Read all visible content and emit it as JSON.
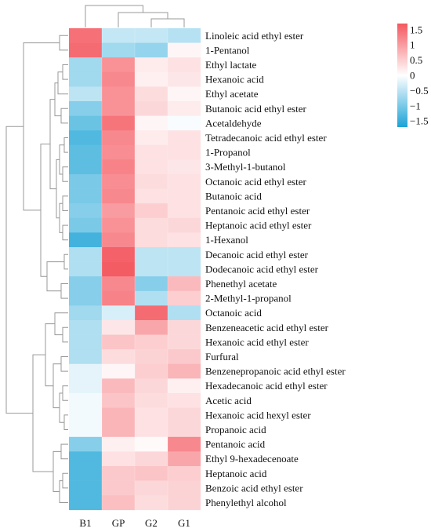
{
  "chart_data": {
    "type": "heatmap",
    "columns": [
      "B1",
      "GP",
      "G2",
      "G1"
    ],
    "rows": [
      "Linoleic acid ethyl ester",
      "1-Pentanol",
      "Ethyl lactate",
      "Hexanoic acid",
      "Ethyl acetate",
      "Butanoic acid ethyl ester",
      "Acetaldehyde",
      "Tetradecanoic acid ethyl ester",
      "1-Propanol",
      "3-Methyl-1-butanol",
      "Octanoic acid ethyl ester",
      "Butanoic acid",
      "Pentanoic acid ethyl ester",
      "Heptanoic acid ethyl ester",
      "1-Hexanol",
      "Decanoic acid ethyl ester",
      "Dodecanoic acid ethyl ester",
      "Phenethyl acetate",
      "2-Methyl-1-propanol",
      "Octanoic acid",
      "Benzeneacetic acid ethyl ester",
      "Hexanoic acid ethyl ester",
      "Furfural",
      "Benzenepropanoic acid ethyl ester",
      "Hexadecanoic acid ethyl ester",
      "Acetic acid",
      "Hexanoic acid hexyl ester",
      "Propanoic acid",
      "Pentanoic acid",
      "Ethyl 9-hexadecenoate",
      "Heptanoic acid",
      "Benzoic acid ethyl ester",
      "Phenylethyl alcohol"
    ],
    "values": [
      [
        1.45,
        -0.45,
        -0.45,
        -0.55
      ],
      [
        1.5,
        -0.7,
        -0.8,
        0.1
      ],
      [
        -0.7,
        1.1,
        0.2,
        0.3
      ],
      [
        -0.7,
        1.2,
        0.15,
        0.25
      ],
      [
        -0.5,
        1.1,
        0.35,
        0.1
      ],
      [
        -0.9,
        1.1,
        0.4,
        0.2
      ],
      [
        -1.1,
        1.4,
        0.1,
        -0.05
      ],
      [
        -1.3,
        1.2,
        0.2,
        0.3
      ],
      [
        -1.2,
        1.15,
        0.3,
        0.3
      ],
      [
        -1.2,
        1.25,
        0.3,
        0.25
      ],
      [
        -1.0,
        1.15,
        0.35,
        0.3
      ],
      [
        -1.0,
        1.2,
        0.3,
        0.3
      ],
      [
        -0.9,
        1.0,
        0.5,
        0.3
      ],
      [
        -1.0,
        1.1,
        0.35,
        0.4
      ],
      [
        -1.4,
        1.2,
        0.35,
        0.3
      ],
      [
        -0.6,
        1.6,
        -0.5,
        -0.5
      ],
      [
        -0.6,
        1.65,
        -0.5,
        -0.5
      ],
      [
        -0.9,
        1.2,
        -0.9,
        0.7
      ],
      [
        -0.9,
        1.25,
        -0.6,
        0.5
      ],
      [
        -0.7,
        -0.3,
        1.5,
        -0.6
      ],
      [
        -0.6,
        0.25,
        0.9,
        0.4
      ],
      [
        -0.6,
        0.6,
        0.5,
        0.4
      ],
      [
        -0.6,
        0.35,
        0.45,
        0.55
      ],
      [
        -0.2,
        0.1,
        0.5,
        0.75
      ],
      [
        -0.2,
        0.7,
        0.4,
        0.15
      ],
      [
        -0.1,
        0.6,
        0.35,
        0.3
      ],
      [
        -0.1,
        0.75,
        0.3,
        0.4
      ],
      [
        -0.1,
        0.75,
        0.3,
        0.4
      ],
      [
        -0.9,
        0.15,
        0.05,
        1.2
      ],
      [
        -1.3,
        0.3,
        0.4,
        0.9
      ],
      [
        -1.3,
        0.55,
        0.6,
        0.5
      ],
      [
        -1.3,
        0.55,
        0.4,
        0.45
      ],
      [
        -1.3,
        0.65,
        0.35,
        0.45
      ]
    ],
    "color_scale": {
      "min": -1.7,
      "max": 1.7,
      "low_color": "#1ba3d6",
      "mid_color": "#ffffff",
      "high_color": "#f4575f",
      "ticks": [
        1.5,
        1,
        0.5,
        0,
        -0.5,
        -1,
        -1.5
      ],
      "tick_labels": [
        "1.5",
        "1",
        "0.5",
        "0",
        "−0.5",
        "−1",
        "−1.5"
      ]
    },
    "row_dendrogram": true,
    "column_dendrogram": true
  }
}
